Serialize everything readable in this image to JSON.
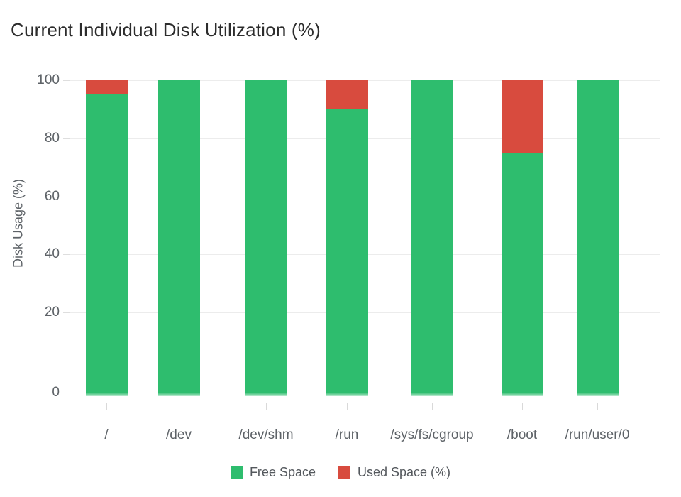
{
  "chart_data": {
    "type": "bar",
    "stacked": true,
    "title": "Current Individual Disk Utilization (%)",
    "ylabel": "Disk Usage (%)",
    "xlabel": "",
    "categories": [
      "/",
      "/dev",
      "/dev/shm",
      "/run",
      "/sys/fs/cgroup",
      "/boot",
      "/run/user/0"
    ],
    "series": [
      {
        "name": "Free Space",
        "color": "#2ebd6e",
        "values": [
          95,
          100,
          100,
          90,
          100,
          75,
          100
        ]
      },
      {
        "name": "Used Space (%)",
        "color": "#d84b3e",
        "values": [
          5,
          0,
          0,
          10,
          0,
          25,
          0
        ]
      }
    ],
    "ylim": [
      0,
      100
    ],
    "y_ticks": [
      0,
      20,
      40,
      60,
      80,
      100
    ],
    "grid": true,
    "legend_position": "bottom"
  },
  "colors": {
    "free": "#2ebd6e",
    "used": "#d84b3e",
    "gridline": "#ececec",
    "axis_line": "#e3e3e3",
    "tick_mark": "#dedede",
    "tick_text": "#5d6267",
    "title_text": "#2c2c2c",
    "legend_text": "#54585d",
    "background": "#ffffff"
  }
}
